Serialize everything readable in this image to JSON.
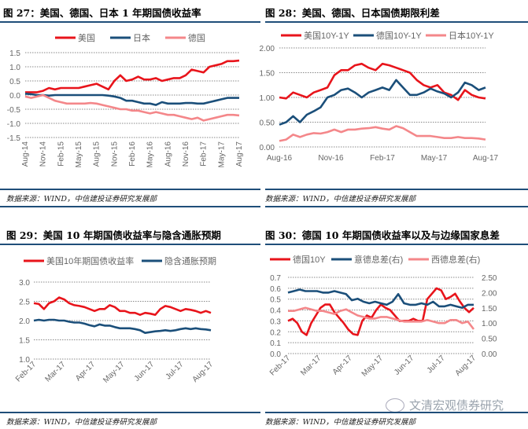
{
  "colors": {
    "us_red": "#e8141b",
    "blue": "#1b4f7a",
    "pink": "#f4878a",
    "rule": "#1f4e79",
    "grid": "#888888"
  },
  "panels": [
    {
      "title": "图 27：美国、德国、日本 1 年期国债收益率",
      "source": "数据来源：WIND，中信建投证券研究发展部"
    },
    {
      "title": "图 28：美国、德国、日本国债期限利差",
      "source": "数据来源：WIND，中信建投证券研究发展部"
    },
    {
      "title": "图 29：美国 10 年期国债收益率与隐含通胀预期",
      "source": "数据来源：WIND，中信建投证券研究发展部"
    },
    {
      "title": "图 30：德国 10 年期国债收益率以及与边缘国家息差",
      "source": "数据来源：WIND，中信建投证券研究发展部"
    }
  ],
  "watermark": "文清宏观债券研究",
  "chart_data": [
    {
      "type": "line",
      "legend_position": "top",
      "grid": true,
      "yticks": [
        "1.5",
        "1.0",
        "0.5",
        "0.0",
        "-0.5",
        "-1.0",
        "-1.5"
      ],
      "ylim": [
        -1.5,
        1.5
      ],
      "xticks": [
        "Aug-14",
        "Nov-14",
        "Feb-15",
        "May-15",
        "Aug-15",
        "Nov-15",
        "Feb-16",
        "May-16",
        "Aug-16",
        "Nov-16",
        "Feb-17",
        "May-17",
        "Aug-17"
      ],
      "series": [
        {
          "name": "美国",
          "color": "#e8141b",
          "values": [
            0.1,
            0.1,
            0.1,
            0.15,
            0.25,
            0.2,
            0.25,
            0.25,
            0.25,
            0.25,
            0.3,
            0.35,
            0.4,
            0.3,
            0.2,
            0.5,
            0.7,
            0.5,
            0.55,
            0.65,
            0.55,
            0.55,
            0.6,
            0.5,
            0.55,
            0.6,
            0.6,
            0.7,
            0.9,
            0.85,
            0.8,
            1.0,
            1.05,
            1.1,
            1.2,
            1.2,
            1.22
          ]
        },
        {
          "name": "日本",
          "color": "#1b4f7a",
          "values": [
            0.05,
            0.03,
            0.0,
            0.0,
            -0.02,
            0.0,
            0.0,
            0.0,
            0.0,
            0.0,
            0.0,
            0.0,
            0.0,
            0.0,
            -0.02,
            -0.05,
            -0.1,
            -0.2,
            -0.2,
            -0.25,
            -0.3,
            -0.3,
            -0.35,
            -0.25,
            -0.3,
            -0.3,
            -0.3,
            -0.28,
            -0.28,
            -0.3,
            -0.3,
            -0.25,
            -0.2,
            -0.15,
            -0.1,
            -0.1,
            -0.1
          ]
        },
        {
          "name": "德国",
          "color": "#f4878a",
          "values": [
            -0.05,
            -0.1,
            -0.05,
            0.0,
            -0.1,
            -0.2,
            -0.25,
            -0.3,
            -0.3,
            -0.3,
            -0.3,
            -0.28,
            -0.3,
            -0.35,
            -0.4,
            -0.45,
            -0.5,
            -0.5,
            -0.55,
            -0.55,
            -0.6,
            -0.65,
            -0.6,
            -0.65,
            -0.7,
            -0.7,
            -0.75,
            -0.8,
            -0.85,
            -0.8,
            -0.9,
            -0.85,
            -0.8,
            -0.75,
            -0.7,
            -0.7,
            -0.72
          ]
        }
      ]
    },
    {
      "type": "line",
      "legend_position": "top",
      "grid": true,
      "yticks": [
        "2.00",
        "1.50",
        "1.00",
        "0.50",
        "0.00"
      ],
      "ylim": [
        0,
        2
      ],
      "xticks": [
        "Aug-16",
        "Nov-16",
        "Feb-17",
        "May-17",
        "Aug-17"
      ],
      "series": [
        {
          "name": "美国10Y-1Y",
          "color": "#e8141b",
          "values": [
            1.0,
            0.98,
            1.1,
            1.05,
            1.0,
            1.1,
            1.15,
            1.2,
            1.45,
            1.55,
            1.55,
            1.65,
            1.68,
            1.6,
            1.55,
            1.68,
            1.65,
            1.6,
            1.55,
            1.5,
            1.35,
            1.25,
            1.2,
            1.25,
            1.1,
            1.05,
            0.95,
            1.15,
            1.05,
            1.0,
            0.98
          ]
        },
        {
          "name": "德国10Y-1Y",
          "color": "#1b4f7a",
          "values": [
            0.45,
            0.5,
            0.62,
            0.5,
            0.65,
            0.72,
            0.8,
            1.0,
            1.05,
            1.15,
            1.18,
            1.1,
            1.0,
            1.1,
            1.15,
            1.2,
            1.15,
            1.35,
            1.2,
            1.05,
            1.05,
            1.1,
            1.18,
            1.12,
            1.08,
            1.0,
            1.1,
            1.3,
            1.25,
            1.15,
            1.2
          ]
        },
        {
          "name": "日本10Y-1Y",
          "color": "#f4878a",
          "values": [
            0.12,
            0.15,
            0.25,
            0.2,
            0.25,
            0.28,
            0.27,
            0.3,
            0.35,
            0.3,
            0.35,
            0.35,
            0.37,
            0.38,
            0.4,
            0.37,
            0.35,
            0.42,
            0.38,
            0.3,
            0.22,
            0.22,
            0.22,
            0.2,
            0.18,
            0.18,
            0.2,
            0.18,
            0.18,
            0.17,
            0.15
          ]
        }
      ]
    },
    {
      "type": "line",
      "legend_position": "top",
      "grid": true,
      "yticks": [
        "3.0",
        "2.5",
        "2.0",
        "1.5",
        "1.0"
      ],
      "ylim": [
        1,
        3
      ],
      "xticks": [
        "Feb-17",
        "Mar-17",
        "Apr-17",
        "May-17",
        "Jun-17",
        "Jul-17",
        "Aug-17"
      ],
      "series": [
        {
          "name": "美国10年期国债收益率",
          "color": "#e8141b",
          "values": [
            2.45,
            2.43,
            2.3,
            2.45,
            2.5,
            2.6,
            2.55,
            2.45,
            2.4,
            2.38,
            2.35,
            2.3,
            2.25,
            2.3,
            2.3,
            2.4,
            2.35,
            2.25,
            2.25,
            2.2,
            2.2,
            2.15,
            2.2,
            2.18,
            2.15,
            2.3,
            2.38,
            2.35,
            2.3,
            2.25,
            2.3,
            2.28,
            2.25,
            2.2,
            2.25,
            2.2
          ]
        },
        {
          "name": "隐含通胀预期",
          "color": "#1b4f7a",
          "values": [
            2.0,
            2.02,
            2.0,
            2.02,
            2.02,
            2.0,
            2.0,
            1.97,
            1.95,
            1.95,
            1.92,
            1.88,
            1.85,
            1.9,
            1.87,
            1.87,
            1.83,
            1.8,
            1.8,
            1.8,
            1.78,
            1.75,
            1.68,
            1.7,
            1.72,
            1.73,
            1.75,
            1.73,
            1.75,
            1.78,
            1.8,
            1.78,
            1.8,
            1.78,
            1.77,
            1.75
          ]
        }
      ]
    },
    {
      "type": "line",
      "legend_position": "top",
      "grid": true,
      "yticks": [
        "0.7",
        "0.6",
        "0.5",
        "0.4",
        "0.3",
        "0.2",
        "0.1",
        "0.0"
      ],
      "ylim": [
        0,
        0.7
      ],
      "y2ticks": [
        "2.50",
        "2.00",
        "1.50",
        "1.00",
        "0.50",
        "0.00"
      ],
      "y2lim": [
        0,
        2.5
      ],
      "xticks": [
        "Feb-17",
        "Mar-17",
        "Apr-17",
        "May-17",
        "Jun-17",
        "Jul-17",
        "Aug-17"
      ],
      "series": [
        {
          "name": "德国10Y",
          "axis": "left",
          "color": "#e8141b",
          "values": [
            0.3,
            0.32,
            0.28,
            0.2,
            0.17,
            0.28,
            0.35,
            0.42,
            0.45,
            0.45,
            0.38,
            0.33,
            0.28,
            0.22,
            0.18,
            0.17,
            0.3,
            0.35,
            0.33,
            0.4,
            0.45,
            0.42,
            0.4,
            0.35,
            0.3,
            0.3,
            0.3,
            0.32,
            0.3,
            0.3,
            0.5,
            0.55,
            0.6,
            0.58,
            0.5,
            0.52,
            0.55,
            0.48,
            0.42,
            0.38,
            0.42
          ]
        },
        {
          "name": "意德息差(右)",
          "axis": "right",
          "color": "#1b4f7a",
          "values": [
            2.0,
            2.05,
            2.1,
            2.05,
            2.05,
            2.05,
            2.0,
            2.0,
            2.05,
            2.0,
            1.95,
            1.75,
            1.8,
            1.7,
            1.65,
            1.7,
            1.65,
            1.6,
            1.7,
            1.95,
            1.65,
            1.6,
            1.6,
            1.65,
            1.6,
            1.7,
            1.55,
            1.55,
            1.6,
            1.55,
            1.5,
            1.6,
            1.6
          ]
        },
        {
          "name": "西德息差(右)",
          "axis": "right",
          "color": "#f4878a",
          "values": [
            1.4,
            1.4,
            1.45,
            1.5,
            1.45,
            1.4,
            1.4,
            1.35,
            1.3,
            1.4,
            1.45,
            1.35,
            1.25,
            1.2,
            1.15,
            1.15,
            1.2,
            1.2,
            1.15,
            1.1,
            1.05,
            1.05,
            1.05,
            1.05,
            1.1,
            1.05,
            1.0,
            1.0,
            1.1,
            1.1,
            1.0,
            1.05,
            0.8
          ]
        }
      ]
    }
  ]
}
